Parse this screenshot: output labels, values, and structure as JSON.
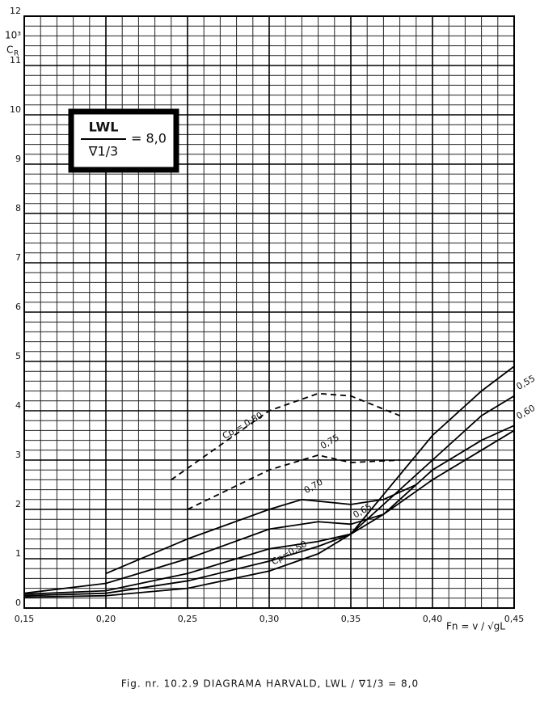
{
  "chart_data": {
    "type": "line",
    "unit": "10³",
    "y_label": "C",
    "y_label_sub": "R",
    "x_label": "Fn = v / √gL",
    "box_numerator": "LWL",
    "box_denominator": "∇1/3",
    "box_value": "= 8,0",
    "caption": "Fig. nr. 10.2.9   DIAGRAMA HARVALD,   LWL / ∇1/3 = 8,0",
    "xlim": [
      0.15,
      0.45
    ],
    "ylim": [
      0,
      12
    ],
    "xticks": [
      {
        "value": 0.15,
        "label": "0,15"
      },
      {
        "value": 0.2,
        "label": "0,20"
      },
      {
        "value": 0.25,
        "label": "0,25"
      },
      {
        "value": 0.3,
        "label": "0,30"
      },
      {
        "value": 0.35,
        "label": "0,35"
      },
      {
        "value": 0.4,
        "label": "0,40"
      },
      {
        "value": 0.45,
        "label": "0,45"
      }
    ],
    "yticks": [
      0,
      1,
      2,
      3,
      4,
      5,
      6,
      7,
      8,
      9,
      10,
      11,
      12
    ],
    "grid": true,
    "minor_grid": [
      0.01,
      0.2
    ],
    "series": [
      {
        "name": "Cp=0,50",
        "color": "#000",
        "dashed": false,
        "x": [
          0.15,
          0.2,
          0.25,
          0.3,
          0.33,
          0.35,
          0.37,
          0.4,
          0.43,
          0.45
        ],
        "values": [
          0.22,
          0.25,
          0.4,
          0.75,
          1.1,
          1.5,
          2.3,
          3.5,
          4.4,
          4.9
        ]
      },
      {
        "name": "0,55",
        "color": "#000",
        "dashed": false,
        "x": [
          0.15,
          0.2,
          0.25,
          0.3,
          0.33,
          0.35,
          0.37,
          0.4,
          0.43,
          0.45
        ],
        "values": [
          0.25,
          0.3,
          0.55,
          0.95,
          1.25,
          1.5,
          2.1,
          3.0,
          3.9,
          4.3
        ]
      },
      {
        "name": "0,60",
        "color": "#000",
        "dashed": false,
        "x": [
          0.15,
          0.2,
          0.25,
          0.3,
          0.33,
          0.35,
          0.37,
          0.4,
          0.43,
          0.45
        ],
        "values": [
          0.28,
          0.35,
          0.7,
          1.2,
          1.35,
          1.5,
          1.9,
          2.8,
          3.4,
          3.7
        ]
      },
      {
        "name": "0,65",
        "color": "#000",
        "dashed": false,
        "x": [
          0.15,
          0.2,
          0.25,
          0.3,
          0.33,
          0.35,
          0.37,
          0.4,
          0.43,
          0.45
        ],
        "values": [
          0.3,
          0.5,
          1.0,
          1.6,
          1.75,
          1.7,
          1.9,
          2.6,
          3.2,
          3.6
        ]
      },
      {
        "name": "0,70",
        "color": "#000",
        "dashed": false,
        "x": [
          0.2,
          0.25,
          0.3,
          0.32,
          0.35,
          0.37,
          0.39
        ],
        "values": [
          0.7,
          1.4,
          2.0,
          2.2,
          2.1,
          2.2,
          2.5
        ]
      },
      {
        "name": "0,75",
        "color": "#000",
        "dashed": true,
        "x": [
          0.25,
          0.3,
          0.33,
          0.35,
          0.38
        ],
        "values": [
          2.0,
          2.8,
          3.1,
          2.95,
          3.0
        ]
      },
      {
        "name": "Cp = 0,80",
        "color": "#000",
        "dashed": true,
        "x": [
          0.24,
          0.27,
          0.3,
          0.33,
          0.35,
          0.38
        ],
        "values": [
          2.6,
          3.3,
          4.0,
          4.35,
          4.3,
          3.9
        ]
      }
    ]
  }
}
